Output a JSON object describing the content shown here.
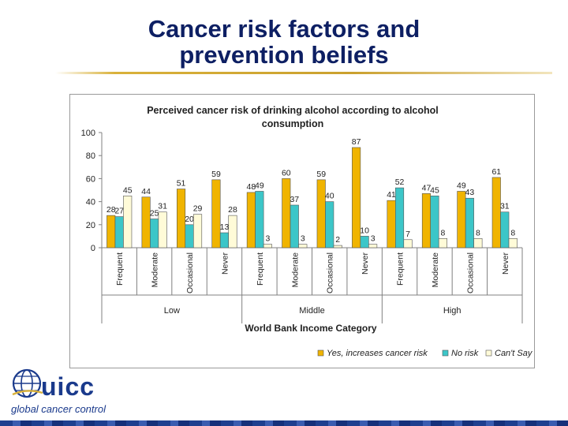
{
  "slide": {
    "title_line1": "Cancer risk factors and",
    "title_line2": "prevention beliefs"
  },
  "logo": {
    "brand": "uicc",
    "tagline": "global cancer control"
  },
  "colors": {
    "title": "#0d1f63",
    "yes": "#f0b400",
    "no_risk": "#3cc6c8",
    "cant_say": "#fffbd8",
    "accent_gold": "#d9b13a",
    "brand_blue": "#1a3a8c"
  },
  "chart_data": {
    "type": "bar",
    "title": "Perceived cancer risk of drinking alcohol according to alcohol consumption",
    "title_lines": [
      "Perceived cancer risk of drinking alcohol according to alcohol",
      "consumption"
    ],
    "xlabel": "World Bank Income Category",
    "ylabel": "",
    "ylim": [
      0,
      100
    ],
    "yticks": [
      0,
      20,
      40,
      60,
      80,
      100
    ],
    "grid": false,
    "legend_position": "bottom-right",
    "groups": [
      {
        "label": "Low",
        "categories": [
          "Frequent",
          "Moderate",
          "Occasional",
          "Never"
        ]
      },
      {
        "label": "Middle",
        "categories": [
          "Frequent",
          "Moderate",
          "Occasional",
          "Never"
        ]
      },
      {
        "label": "High",
        "categories": [
          "Frequent",
          "Moderate",
          "Occasional",
          "Never"
        ]
      }
    ],
    "series": [
      {
        "name": "Yes, increases cancer risk",
        "color": "#f0b400",
        "values": [
          28,
          44,
          51,
          59,
          48,
          60,
          59,
          87,
          41,
          47,
          49,
          61
        ]
      },
      {
        "name": "No risk",
        "color": "#3cc6c8",
        "values": [
          27,
          25,
          20,
          13,
          49,
          37,
          40,
          10,
          52,
          45,
          43,
          31
        ]
      },
      {
        "name": "Can't Say",
        "color": "#fffbd8",
        "values": [
          45,
          31,
          29,
          28,
          3,
          3,
          2,
          3,
          7,
          8,
          8,
          8
        ]
      }
    ]
  }
}
